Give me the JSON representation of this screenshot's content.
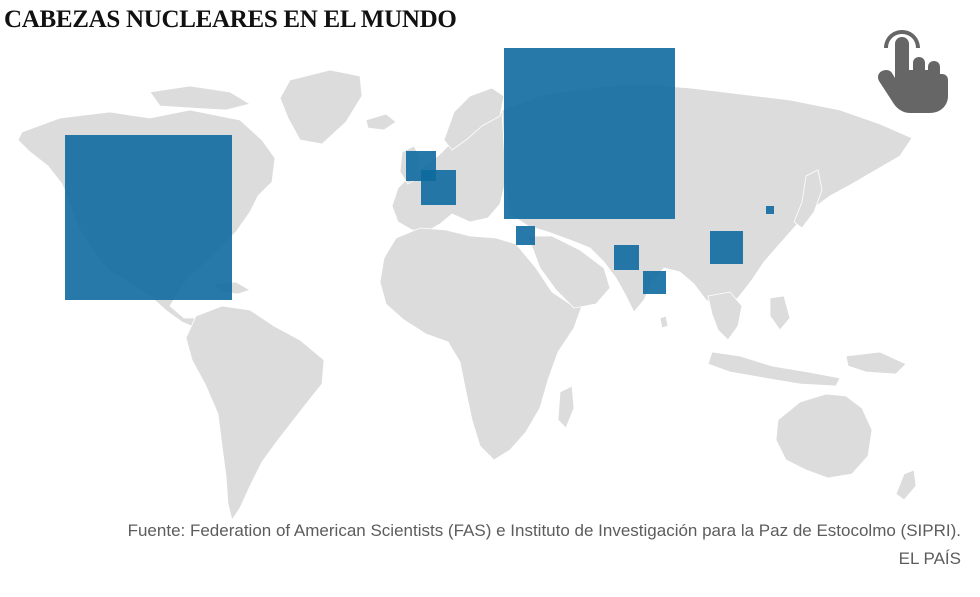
{
  "title": "CABEZAS NUCLEARES EN EL MUNDO",
  "source": "Fuente: Federation of American Scientists (FAS) e Instituto de Investigación para la Paz de Estocolmo (SIPRI).",
  "brand": "EL PAÍS",
  "icon": "pointer-hand-icon",
  "colors": {
    "land": "#dcdcdc",
    "marker": "#0e6a9f",
    "icon": "#666666",
    "text": "#5c5c5c"
  },
  "markers": [
    {
      "id": "usa",
      "lon": -96,
      "lat": 38
    },
    {
      "id": "uk",
      "lon": -2.5,
      "lat": 53.5
    },
    {
      "id": "france",
      "lon": 2.2,
      "lat": 46.5
    },
    {
      "id": "russia",
      "lon": 60,
      "lat": 55
    },
    {
      "id": "israel",
      "lon": 34.9,
      "lat": 31.5
    },
    {
      "id": "pakistan",
      "lon": 69.5,
      "lat": 30
    },
    {
      "id": "india",
      "lon": 78,
      "lat": 21.5
    },
    {
      "id": "china",
      "lon": 104,
      "lat": 33
    },
    {
      "id": "north-korea",
      "lon": 127,
      "lat": 40
    }
  ]
}
